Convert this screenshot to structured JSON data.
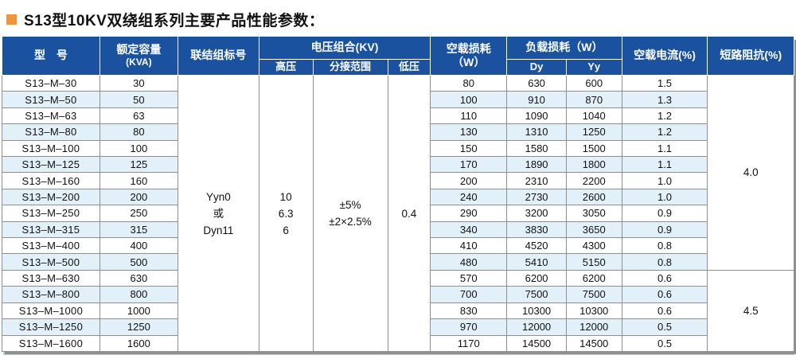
{
  "page": {
    "title": "S13型10KV双绕组系列主要产品性能参数："
  },
  "colors": {
    "header_bg": "#1A529F",
    "stripe": "#E2F0F9",
    "bullet": "#F0953C",
    "grid_line": "#8F8F8F",
    "header_text": "#FFFFFF",
    "body_text": "#111111"
  },
  "table": {
    "headers": {
      "model": "型　号",
      "capacity_line1": "额定容量",
      "capacity_line2": "(KVA)",
      "connection": "联结组标号",
      "voltage_group": "电压组合(KV)",
      "hv": "高压",
      "tap_range": "分接范围",
      "lv": "低压",
      "no_load_loss_line1": "空载损耗",
      "no_load_loss_line2": "（W）",
      "load_loss": "负载损耗（W）",
      "dy": "Dy",
      "yy": "Yy",
      "no_load_current": "空载电流(%)",
      "short_circuit_impedance": "短路阻抗(%)"
    },
    "merged": {
      "connection_lines": [
        "Yyn0",
        "或",
        "Dyn11"
      ],
      "hv_lines": [
        "10",
        "6.3",
        "6"
      ],
      "tap_lines": [
        "±5%",
        "±2×2.5%"
      ],
      "lv": "0.4",
      "impedance_groups": [
        {
          "value": "4.0",
          "rows": 12
        },
        {
          "value": "4.5",
          "rows": 5
        }
      ]
    },
    "rows": [
      {
        "model": "S13–M–30",
        "kva": "30",
        "no_load": "80",
        "dy": "630",
        "yy": "600",
        "current": "1.5"
      },
      {
        "model": "S13–M–50",
        "kva": "50",
        "no_load": "100",
        "dy": "910",
        "yy": "870",
        "current": "1.3"
      },
      {
        "model": "S13–M–63",
        "kva": "63",
        "no_load": "110",
        "dy": "1090",
        "yy": "1040",
        "current": "1.2"
      },
      {
        "model": "S13–M–80",
        "kva": "80",
        "no_load": "130",
        "dy": "1310",
        "yy": "1250",
        "current": "1.2"
      },
      {
        "model": "S13–M–100",
        "kva": "100",
        "no_load": "150",
        "dy": "1580",
        "yy": "1500",
        "current": "1.1"
      },
      {
        "model": "S13–M–125",
        "kva": "125",
        "no_load": "170",
        "dy": "1890",
        "yy": "1800",
        "current": "1.1"
      },
      {
        "model": "S13–M–160",
        "kva": "160",
        "no_load": "200",
        "dy": "2310",
        "yy": "2200",
        "current": "1.0"
      },
      {
        "model": "S13–M–200",
        "kva": "200",
        "no_load": "240",
        "dy": "2730",
        "yy": "2600",
        "current": "1.0"
      },
      {
        "model": "S13–M–250",
        "kva": "250",
        "no_load": "290",
        "dy": "3200",
        "yy": "3050",
        "current": "0.9"
      },
      {
        "model": "S13–M–315",
        "kva": "315",
        "no_load": "340",
        "dy": "3830",
        "yy": "3650",
        "current": "0.9"
      },
      {
        "model": "S13–M–400",
        "kva": "400",
        "no_load": "410",
        "dy": "4520",
        "yy": "4300",
        "current": "0.8"
      },
      {
        "model": "S13–M–500",
        "kva": "500",
        "no_load": "480",
        "dy": "5410",
        "yy": "5150",
        "current": "0.8"
      },
      {
        "model": "S13–M–630",
        "kva": "630",
        "no_load": "570",
        "dy": "6200",
        "yy": "6200",
        "current": "0.6"
      },
      {
        "model": "S13–M–800",
        "kva": "800",
        "no_load": "700",
        "dy": "7500",
        "yy": "7500",
        "current": "0.6"
      },
      {
        "model": "S13–M–1000",
        "kva": "1000",
        "no_load": "830",
        "dy": "10300",
        "yy": "10300",
        "current": "0.6"
      },
      {
        "model": "S13–M–1250",
        "kva": "1250",
        "no_load": "970",
        "dy": "12000",
        "yy": "12000",
        "current": "0.5"
      },
      {
        "model": "S13–M–1600",
        "kva": "1600",
        "no_load": "1170",
        "dy": "14500",
        "yy": "14500",
        "current": "0.5"
      }
    ]
  },
  "chart_data": {
    "type": "table",
    "title": "S13型10KV双绕组系列主要产品性能参数",
    "columns": [
      "型号",
      "额定容量(KVA)",
      "联结组标号",
      "电压组合-高压(KV)",
      "电压组合-分接范围",
      "电压组合-低压(KV)",
      "空载损耗(W)",
      "负载损耗Dy(W)",
      "负载损耗Yy(W)",
      "空载电流(%)",
      "短路阻抗(%)"
    ],
    "rows": [
      [
        "S13–M–30",
        "30",
        "Yyn0或Dyn11",
        "10/6.3/6",
        "±5%、±2×2.5%",
        "0.4",
        "80",
        "630",
        "600",
        "1.5",
        "4.0"
      ],
      [
        "S13–M–50",
        "50",
        "Yyn0或Dyn11",
        "10/6.3/6",
        "±5%、±2×2.5%",
        "0.4",
        "100",
        "910",
        "870",
        "1.3",
        "4.0"
      ],
      [
        "S13–M–63",
        "63",
        "Yyn0或Dyn11",
        "10/6.3/6",
        "±5%、±2×2.5%",
        "0.4",
        "110",
        "1090",
        "1040",
        "1.2",
        "4.0"
      ],
      [
        "S13–M–80",
        "80",
        "Yyn0或Dyn11",
        "10/6.3/6",
        "±5%、±2×2.5%",
        "0.4",
        "130",
        "1310",
        "1250",
        "1.2",
        "4.0"
      ],
      [
        "S13–M–100",
        "100",
        "Yyn0或Dyn11",
        "10/6.3/6",
        "±5%、±2×2.5%",
        "0.4",
        "150",
        "1580",
        "1500",
        "1.1",
        "4.0"
      ],
      [
        "S13–M–125",
        "125",
        "Yyn0或Dyn11",
        "10/6.3/6",
        "±5%、±2×2.5%",
        "0.4",
        "170",
        "1890",
        "1800",
        "1.1",
        "4.0"
      ],
      [
        "S13–M–160",
        "160",
        "Yyn0或Dyn11",
        "10/6.3/6",
        "±5%、±2×2.5%",
        "0.4",
        "200",
        "2310",
        "2200",
        "1.0",
        "4.0"
      ],
      [
        "S13–M–200",
        "200",
        "Yyn0或Dyn11",
        "10/6.3/6",
        "±5%、±2×2.5%",
        "0.4",
        "240",
        "2730",
        "2600",
        "1.0",
        "4.0"
      ],
      [
        "S13–M–250",
        "250",
        "Yyn0或Dyn11",
        "10/6.3/6",
        "±5%、±2×2.5%",
        "0.4",
        "290",
        "3200",
        "3050",
        "0.9",
        "4.0"
      ],
      [
        "S13–M–315",
        "315",
        "Yyn0或Dyn11",
        "10/6.3/6",
        "±5%、±2×2.5%",
        "0.4",
        "340",
        "3830",
        "3650",
        "0.9",
        "4.0"
      ],
      [
        "S13–M–400",
        "400",
        "Yyn0或Dyn11",
        "10/6.3/6",
        "±5%、±2×2.5%",
        "0.4",
        "410",
        "4520",
        "4300",
        "0.8",
        "4.0"
      ],
      [
        "S13–M–500",
        "500",
        "Yyn0或Dyn11",
        "10/6.3/6",
        "±5%、±2×2.5%",
        "0.4",
        "480",
        "5410",
        "5150",
        "0.8",
        "4.0"
      ],
      [
        "S13–M–630",
        "630",
        "Yyn0或Dyn11",
        "10/6.3/6",
        "±5%、±2×2.5%",
        "0.4",
        "570",
        "6200",
        "6200",
        "0.6",
        "4.5"
      ],
      [
        "S13–M–800",
        "800",
        "Yyn0或Dyn11",
        "10/6.3/6",
        "±5%、±2×2.5%",
        "0.4",
        "700",
        "7500",
        "7500",
        "0.6",
        "4.5"
      ],
      [
        "S13–M–1000",
        "1000",
        "Yyn0或Dyn11",
        "10/6.3/6",
        "±5%、±2×2.5%",
        "0.4",
        "830",
        "10300",
        "10300",
        "0.6",
        "4.5"
      ],
      [
        "S13–M–1250",
        "1250",
        "Yyn0或Dyn11",
        "10/6.3/6",
        "±5%、±2×2.5%",
        "0.4",
        "970",
        "12000",
        "12000",
        "0.5",
        "4.5"
      ],
      [
        "S13–M–1600",
        "1600",
        "Yyn0或Dyn11",
        "10/6.3/6",
        "±5%、±2×2.5%",
        "0.4",
        "1170",
        "14500",
        "14500",
        "0.5",
        "4.5"
      ]
    ]
  }
}
